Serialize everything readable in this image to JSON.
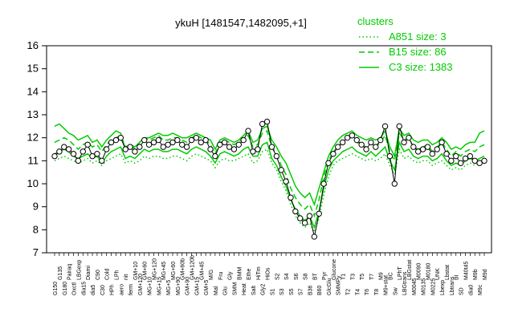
{
  "chart_data": {
    "type": "line",
    "title": "ykuH [1481547,1482095,+1]",
    "xlabel": "",
    "ylabel": "",
    "ylim": [
      7,
      16
    ],
    "yticks": [
      7,
      8,
      9,
      10,
      11,
      12,
      13,
      14,
      15,
      16
    ],
    "grid": false,
    "legend": {
      "title": "clusters",
      "placement": "top-right",
      "color": "#00cc00",
      "entries": [
        {
          "label": "A851 size: 3",
          "style": "dotted"
        },
        {
          "label": "B15 size: 86",
          "style": "dashed"
        },
        {
          "label": "C3 size: 1383",
          "style": "solid"
        }
      ]
    },
    "x_tick_labels": [
      "G150",
      "G135",
      "G180",
      "Pairaq",
      "Oxctl",
      "LBGexp",
      "dia15",
      "Diami",
      "dia5",
      "C90",
      "C30",
      "Cold",
      "HPh",
      "LPh",
      "aero",
      "nit",
      "ferm",
      "GM+10",
      "GM+120",
      "GM+60",
      "MG+10",
      "MG+120",
      "MG+15",
      "MG+45",
      "MG+5",
      "MG+60",
      "MG+90",
      "GM+60b",
      "GM+90",
      "GM+120b",
      "GM+15",
      "GM+45",
      "GM+5",
      "M/G",
      "Mal",
      "Fru",
      "Glu",
      "Gly",
      "SMM",
      "BMM",
      "Heat",
      "Ethe",
      "Salt",
      "HiTm",
      "Gly2",
      "HiOs",
      "S1",
      "S2",
      "S3",
      "S4",
      "S5",
      "S6",
      "S7",
      "S8",
      "B36",
      "BT",
      "B60",
      "Pyr",
      "GlcGlu",
      "Glucone",
      "SMMPy",
      "T1",
      "T2",
      "T3",
      "T4",
      "T5",
      "T6",
      "T7",
      "T8",
      "M9",
      "M9+stat",
      "BC",
      "Sw",
      "LPhT",
      "LBGtrans",
      "LBGstat",
      "M0045",
      "M0090",
      "M0135",
      "M0180",
      "M0225",
      "UNK",
      "Lbexp",
      "Lbstat",
      "Lbtrans",
      "BI",
      "SD",
      "M40t45",
      "dia0",
      "M9b",
      "M9c",
      "M9d"
    ],
    "series": [
      {
        "name": "ykuH",
        "color": "#000000",
        "style": "points",
        "values": [
          11.2,
          11.4,
          11.6,
          11.5,
          11.3,
          11.0,
          11.4,
          11.7,
          11.2,
          11.3,
          11.0,
          11.5,
          11.8,
          11.9,
          12.0,
          11.5,
          11.6,
          11.4,
          11.6,
          11.9,
          11.7,
          11.8,
          11.9,
          11.6,
          11.7,
          11.8,
          11.9,
          11.7,
          11.6,
          11.9,
          12.0,
          11.8,
          11.9,
          11.5,
          11.2,
          11.7,
          11.8,
          11.6,
          11.5,
          11.7,
          11.9,
          12.3,
          11.4,
          11.5,
          12.6,
          12.7,
          11.6,
          11.2,
          10.6,
          10.1,
          9.4,
          8.8,
          8.5,
          8.3,
          8.6,
          7.7,
          8.7,
          10.0,
          10.9,
          11.3,
          11.6,
          11.8,
          12.0,
          12.1,
          11.9,
          11.7,
          11.5,
          11.8,
          11.6,
          11.9,
          12.5,
          11.2,
          10.0,
          12.5,
          11.8,
          12.0,
          11.6,
          11.4,
          11.5,
          11.6,
          11.3,
          11.5,
          11.8,
          11.3,
          11.0,
          11.2,
          10.9,
          11.1,
          11.2,
          11.0,
          10.9,
          11.0
        ]
      },
      {
        "name": "",
        "color": "#00cc00",
        "style": "solid",
        "values": [
          12.5,
          12.6,
          12.4,
          12.2,
          12.1,
          11.9,
          12.0,
          12.1,
          11.8,
          11.9,
          11.6,
          11.9,
          12.1,
          12.3,
          12.2,
          11.5,
          11.7,
          11.6,
          11.8,
          12.0,
          12.0,
          12.1,
          12.2,
          12.1,
          12.1,
          12.2,
          12.1,
          12.0,
          12.0,
          12.1,
          12.2,
          12.1,
          12.0,
          11.9,
          11.5,
          11.9,
          12.0,
          11.9,
          11.8,
          11.9,
          12.1,
          12.3,
          11.8,
          11.9,
          12.4,
          12.5,
          11.9,
          11.6,
          11.2,
          10.9,
          10.4,
          9.9,
          9.6,
          9.4,
          9.6,
          9.1,
          9.8,
          10.5,
          11.2,
          11.6,
          11.9,
          12.1,
          12.2,
          12.3,
          12.1,
          12.0,
          11.9,
          12.0,
          11.9,
          12.0,
          12.3,
          11.6,
          11.2,
          12.4,
          12.1,
          12.2,
          11.9,
          11.8,
          11.9,
          11.9,
          11.7,
          11.8,
          12.0,
          11.8,
          11.5,
          11.6,
          11.5,
          11.7,
          11.8,
          11.8,
          12.2,
          12.3
        ]
      },
      {
        "name": "",
        "color": "#00cc00",
        "style": "solid",
        "values": [
          11.3,
          11.4,
          11.5,
          11.4,
          11.2,
          11.1,
          11.2,
          11.3,
          11.1,
          11.2,
          10.9,
          11.2,
          11.4,
          11.5,
          11.6,
          11.1,
          11.2,
          11.1,
          11.3,
          11.5,
          11.4,
          11.5,
          11.5,
          11.4,
          11.4,
          11.5,
          11.5,
          11.4,
          11.3,
          11.5,
          11.6,
          11.5,
          11.4,
          11.2,
          10.9,
          11.3,
          11.4,
          11.3,
          11.2,
          11.3,
          11.5,
          11.6,
          11.2,
          11.2,
          11.7,
          11.8,
          11.1,
          10.8,
          10.3,
          9.9,
          9.3,
          8.9,
          8.6,
          8.4,
          8.6,
          8.1,
          8.8,
          9.8,
          10.6,
          11.0,
          11.2,
          11.4,
          11.5,
          11.6,
          11.4,
          11.3,
          11.2,
          11.4,
          11.2,
          11.4,
          11.6,
          11.0,
          10.6,
          11.8,
          11.4,
          11.5,
          11.2,
          11.1,
          11.2,
          11.2,
          11.0,
          11.1,
          11.3,
          11.0,
          10.8,
          10.9,
          10.8,
          11.0,
          11.1,
          11.0,
          11.1,
          11.2
        ]
      },
      {
        "name": "",
        "color": "#00cc00",
        "style": "dashed",
        "values": [
          11.8,
          11.9,
          12.0,
          11.9,
          11.7,
          11.5,
          11.7,
          11.8,
          11.6,
          11.7,
          11.4,
          11.7,
          11.9,
          12.0,
          12.1,
          11.6,
          11.7,
          11.5,
          11.8,
          12.0,
          11.9,
          12.0,
          12.1,
          11.9,
          11.9,
          12.0,
          12.0,
          11.9,
          11.8,
          12.0,
          12.1,
          12.0,
          11.9,
          11.7,
          11.3,
          11.8,
          11.9,
          11.8,
          11.7,
          11.8,
          12.0,
          12.1,
          11.6,
          11.7,
          12.2,
          12.3,
          11.6,
          11.3,
          10.8,
          10.4,
          9.8,
          9.4,
          9.1,
          8.9,
          9.1,
          8.6,
          9.3,
          10.3,
          11.0,
          11.4,
          11.6,
          11.8,
          12.0,
          12.0,
          11.8,
          11.7,
          11.6,
          11.8,
          11.6,
          11.8,
          12.1,
          11.4,
          11.0,
          12.2,
          11.9,
          12.0,
          11.6,
          11.5,
          11.6,
          11.7,
          11.4,
          11.6,
          11.8,
          11.5,
          11.2,
          11.4,
          11.2,
          11.4,
          11.5,
          11.4,
          11.6,
          11.7
        ]
      },
      {
        "name": "",
        "color": "#00cc00",
        "style": "dotted",
        "values": [
          11.0,
          11.1,
          11.2,
          11.1,
          11.0,
          10.9,
          11.0,
          11.1,
          10.9,
          11.0,
          10.8,
          11.0,
          11.1,
          11.2,
          11.3,
          10.9,
          11.0,
          10.9,
          11.0,
          11.2,
          11.1,
          11.2,
          11.2,
          11.1,
          11.1,
          11.2,
          11.2,
          11.1,
          11.0,
          11.2,
          11.3,
          11.2,
          11.1,
          11.0,
          10.7,
          11.0,
          11.1,
          11.0,
          11.0,
          11.1,
          11.2,
          11.3,
          10.9,
          11.0,
          11.4,
          11.5,
          10.9,
          10.6,
          10.1,
          9.7,
          9.1,
          8.6,
          8.3,
          8.1,
          8.3,
          7.9,
          8.5,
          9.5,
          10.3,
          10.8,
          11.0,
          11.1,
          11.2,
          11.3,
          11.2,
          11.1,
          11.0,
          11.1,
          11.0,
          11.1,
          11.3,
          10.8,
          10.4,
          11.5,
          11.1,
          11.2,
          11.0,
          10.9,
          11.0,
          11.0,
          10.8,
          10.9,
          11.0,
          10.8,
          10.6,
          10.7,
          10.6,
          10.8,
          10.9,
          10.8,
          10.9,
          11.0
        ]
      }
    ]
  }
}
